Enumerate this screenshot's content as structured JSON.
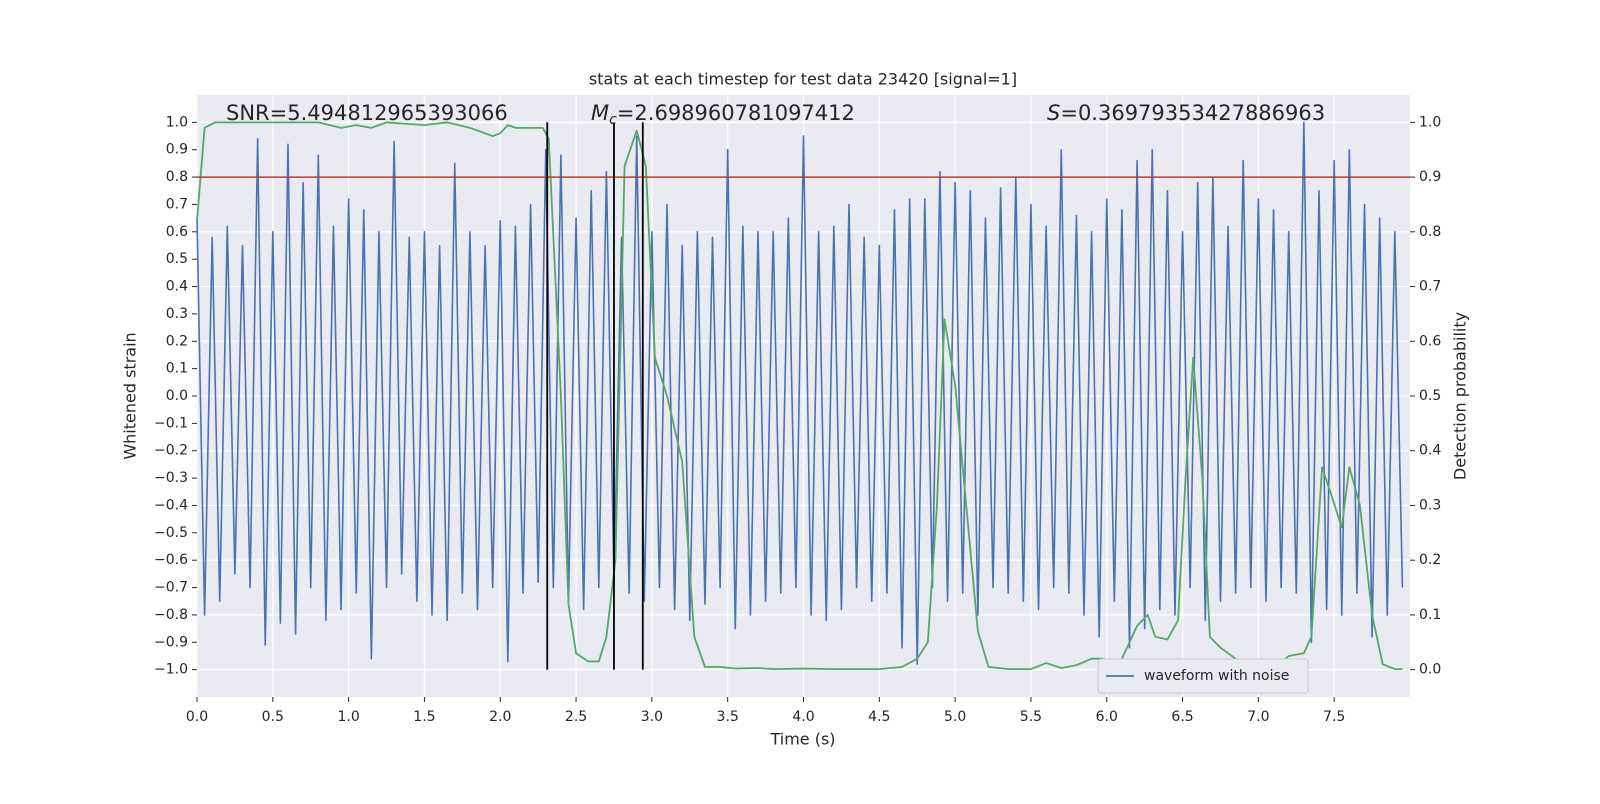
{
  "chart_data": {
    "type": "line",
    "title": "stats at each timestep for test data 23420 [signal=1]",
    "x_label": "Time (s)",
    "y_label": "Whitened strain",
    "y2_label": "Detection probability",
    "annotations": [
      {
        "text": "SNR=5.494812965393066"
      },
      {
        "symbol": "M",
        "subscript": "c",
        "text": "=2.698960781097412"
      },
      {
        "symbol": "S",
        "text": "=0.36979353427886963"
      }
    ],
    "xlim": [
      0,
      8.0
    ],
    "ylim": [
      -1.1,
      1.1
    ],
    "y2lim": [
      -0.05,
      1.05
    ],
    "xticks": [
      {
        "value": 0,
        "label": "0.0"
      },
      0.5,
      {
        "value": 1,
        "label": "1.0"
      },
      1.5,
      {
        "value": 2,
        "label": "2.0"
      },
      2.5,
      {
        "value": 3,
        "label": "3.0"
      },
      3.5,
      {
        "value": 4,
        "label": "4.0"
      },
      4.5,
      {
        "value": 5,
        "label": "5.0"
      },
      5.5,
      {
        "value": 6,
        "label": "6.0"
      },
      6.5,
      {
        "value": 7,
        "label": "7.0"
      },
      7.5
    ],
    "yticks": [
      {
        "value": 1,
        "label": "1.0"
      },
      0.9,
      0.8,
      0.7,
      0.6,
      0.5,
      0.4,
      0.3,
      0.2,
      0.1,
      {
        "value": 0,
        "label": "0.0"
      },
      {
        "value": -0.1,
        "label": "−0.1"
      },
      {
        "value": -0.2,
        "label": "−0.2"
      },
      {
        "value": -0.3,
        "label": "−0.3"
      },
      {
        "value": -0.4,
        "label": "−0.4"
      },
      {
        "value": -0.5,
        "label": "−0.5"
      },
      {
        "value": -0.6,
        "label": "−0.6"
      },
      {
        "value": -0.7,
        "label": "−0.7"
      },
      {
        "value": -0.8,
        "label": "−0.8"
      },
      {
        "value": -0.9,
        "label": "−0.9"
      },
      {
        "value": -1,
        "label": "−1.0"
      }
    ],
    "y2ticks": [
      {
        "value": 0,
        "label": "0.0"
      },
      0.1,
      0.2,
      0.3,
      0.4,
      0.5,
      0.6,
      0.7,
      0.8,
      0.9,
      {
        "value": 1,
        "label": "1.0"
      }
    ],
    "grid": true,
    "legend": "lower right",
    "hline": {
      "y": 0.8,
      "color": "#c0392b"
    },
    "vlines": {
      "x": [
        2.31,
        2.75,
        2.94
      ],
      "ymin": -1,
      "ymax": 1,
      "color": "#000000"
    },
    "series": [
      {
        "name": "waveform with noise",
        "color": "#4c72b0",
        "x": [
          0,
          0.05,
          0.1,
          0.15,
          0.2,
          0.25,
          0.3,
          0.35,
          0.4,
          0.45,
          0.5,
          0.55,
          0.6,
          0.65,
          0.7,
          0.75,
          0.8,
          0.85,
          0.9,
          0.95,
          1,
          1.05,
          1.1,
          1.15,
          1.2,
          1.25,
          1.3,
          1.35,
          1.4,
          1.45,
          1.5,
          1.55,
          1.6,
          1.65,
          1.7,
          1.75,
          1.8,
          1.85,
          1.9,
          1.95,
          2,
          2.05,
          2.1,
          2.15,
          2.2,
          2.25,
          2.3,
          2.35,
          2.4,
          2.45,
          2.5,
          2.55,
          2.6,
          2.65,
          2.7,
          2.75,
          2.8,
          2.85,
          2.9,
          2.95,
          3,
          3.05,
          3.1,
          3.15,
          3.2,
          3.25,
          3.3,
          3.35,
          3.4,
          3.45,
          3.5,
          3.55,
          3.6,
          3.65,
          3.7,
          3.75,
          3.8,
          3.85,
          3.9,
          3.95,
          4,
          4.05,
          4.1,
          4.15,
          4.2,
          4.25,
          4.3,
          4.35,
          4.4,
          4.45,
          4.5,
          4.55,
          4.6,
          4.65,
          4.7,
          4.75,
          4.8,
          4.85,
          4.9,
          4.95,
          5,
          5.05,
          5.1,
          5.15,
          5.2,
          5.25,
          5.3,
          5.35,
          5.4,
          5.45,
          5.5,
          5.55,
          5.6,
          5.65,
          5.7,
          5.75,
          5.8,
          5.85,
          5.9,
          5.95,
          6,
          6.05,
          6.1,
          6.15,
          6.2,
          6.25,
          6.3,
          6.35,
          6.4,
          6.45,
          6.5,
          6.55,
          6.6,
          6.65,
          6.7,
          6.75,
          6.8,
          6.85,
          6.9,
          6.95,
          7,
          7.05,
          7.1,
          7.15,
          7.2,
          7.25,
          7.3,
          7.35,
          7.4,
          7.45,
          7.5,
          7.55,
          7.6,
          7.65,
          7.7,
          7.75,
          7.8,
          7.85,
          7.9,
          7.95
        ],
        "values": [
          0.65,
          -0.8,
          0.58,
          -0.75,
          0.62,
          -0.65,
          0.55,
          -0.7,
          0.94,
          -0.91,
          0.6,
          -0.83,
          0.92,
          -0.87,
          0.78,
          -0.7,
          0.88,
          -0.82,
          0.62,
          -0.78,
          0.72,
          -0.72,
          0.68,
          -0.96,
          0.6,
          -0.7,
          0.93,
          -0.65,
          0.58,
          -0.75,
          0.6,
          -0.8,
          0.55,
          -0.82,
          0.85,
          -0.72,
          0.6,
          -0.78,
          0.55,
          -0.7,
          0.64,
          -0.97,
          0.62,
          -0.72,
          0.7,
          -0.68,
          0.9,
          -0.7,
          0.88,
          -0.75,
          0.65,
          -0.78,
          0.75,
          -0.7,
          0.82,
          -0.68,
          0.58,
          -0.72,
          0.95,
          -0.75,
          0.6,
          -0.7,
          0.7,
          -0.78,
          0.55,
          -0.82,
          0.6,
          -0.76,
          0.58,
          -0.7,
          0.9,
          -0.85,
          0.62,
          -0.8,
          0.6,
          -0.75,
          0.6,
          -0.72,
          0.65,
          -0.7,
          0.95,
          -0.8,
          0.6,
          -0.82,
          0.62,
          -0.78,
          0.7,
          -0.7,
          0.58,
          -0.75,
          0.55,
          -0.72,
          0.68,
          -0.92,
          0.72,
          -0.98,
          0.72,
          -0.7,
          0.82,
          -0.75,
          0.78,
          -0.72,
          0.75,
          -0.8,
          0.65,
          -0.7,
          0.76,
          -0.72,
          0.8,
          -0.75,
          0.7,
          -0.78,
          0.62,
          -0.7,
          0.9,
          -0.72,
          0.66,
          -0.8,
          0.6,
          -0.88,
          0.72,
          -0.75,
          0.68,
          -0.92,
          0.86,
          -0.85,
          0.9,
          -0.78,
          0.75,
          -0.8,
          0.6,
          -0.7,
          0.78,
          -0.82,
          0.8,
          -0.75,
          0.62,
          -0.72,
          0.86,
          -0.7,
          0.72,
          -0.75,
          0.68,
          -0.7,
          0.6,
          -0.72,
          1.0,
          -0.9,
          0.75,
          -0.78,
          0.86,
          -0.8,
          0.9,
          -0.72,
          0.7,
          -0.88,
          0.65,
          -0.8,
          0.6,
          -0.7
        ]
      },
      {
        "color": "#55a868",
        "axis": "y2",
        "x": [
          0,
          0.05,
          0.12,
          0.5,
          0.8,
          0.95,
          1.05,
          1.15,
          1.25,
          1.5,
          1.65,
          1.8,
          1.9,
          1.95,
          2.0,
          2.05,
          2.1,
          2.2,
          2.28,
          2.32,
          2.4,
          2.45,
          2.5,
          2.58,
          2.65,
          2.7,
          2.76,
          2.82,
          2.9,
          2.96,
          3.02,
          3.1,
          3.2,
          3.28,
          3.35,
          3.45,
          3.55,
          3.7,
          3.8,
          4.0,
          4.2,
          4.5,
          4.65,
          4.75,
          4.82,
          4.88,
          4.93,
          5.0,
          5.08,
          5.15,
          5.22,
          5.35,
          5.5,
          5.6,
          5.7,
          5.8,
          5.9,
          5.97,
          6.05,
          6.1,
          6.2,
          6.27,
          6.32,
          6.4,
          6.47,
          6.52,
          6.57,
          6.63,
          6.68,
          6.75,
          6.85,
          6.93,
          7.05,
          7.12,
          7.2,
          7.3,
          7.35,
          7.42,
          7.48,
          7.55,
          7.6,
          7.67,
          7.75,
          7.82,
          7.9,
          7.95
        ],
        "values": [
          0.82,
          0.99,
          1.0,
          1.0,
          1.0,
          0.99,
          0.995,
          0.99,
          1.0,
          0.995,
          1.0,
          0.99,
          0.98,
          0.975,
          0.98,
          0.995,
          0.99,
          0.99,
          0.99,
          0.97,
          0.5,
          0.12,
          0.03,
          0.015,
          0.015,
          0.06,
          0.2,
          0.92,
          0.985,
          0.92,
          0.57,
          0.5,
          0.38,
          0.06,
          0.005,
          0.005,
          0.002,
          0.003,
          0.001,
          0.002,
          0.001,
          0.001,
          0.005,
          0.02,
          0.05,
          0.3,
          0.64,
          0.52,
          0.28,
          0.07,
          0.005,
          0.001,
          0.001,
          0.012,
          0.003,
          0.008,
          0.02,
          0.02,
          0.012,
          0.02,
          0.08,
          0.1,
          0.06,
          0.055,
          0.09,
          0.35,
          0.57,
          0.35,
          0.06,
          0.04,
          0.02,
          0.002,
          0.0,
          0.005,
          0.025,
          0.03,
          0.06,
          0.37,
          0.32,
          0.26,
          0.37,
          0.3,
          0.1,
          0.01,
          0.001,
          0.001
        ]
      }
    ]
  }
}
